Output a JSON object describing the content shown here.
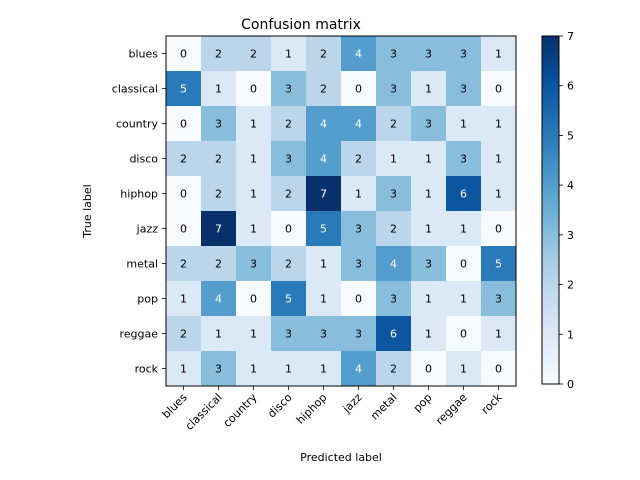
{
  "chart_data": {
    "type": "heatmap",
    "title": "Confusion matrix",
    "xlabel": "Predicted label",
    "ylabel": "True label",
    "x_categories": [
      "blues",
      "classical",
      "country",
      "disco",
      "hiphop",
      "jazz",
      "metal",
      "pop",
      "reggae",
      "rock"
    ],
    "y_categories": [
      "blues",
      "classical",
      "country",
      "disco",
      "hiphop",
      "jazz",
      "metal",
      "pop",
      "reggae",
      "rock"
    ],
    "values": [
      [
        0,
        2,
        2,
        1,
        2,
        4,
        3,
        3,
        3,
        1
      ],
      [
        5,
        1,
        0,
        3,
        2,
        0,
        3,
        1,
        3,
        0
      ],
      [
        0,
        3,
        1,
        2,
        4,
        4,
        2,
        3,
        1,
        1
      ],
      [
        2,
        2,
        1,
        3,
        4,
        2,
        1,
        1,
        3,
        1
      ],
      [
        0,
        2,
        1,
        2,
        7,
        1,
        3,
        1,
        6,
        1
      ],
      [
        0,
        7,
        1,
        0,
        5,
        3,
        2,
        1,
        1,
        0
      ],
      [
        2,
        2,
        3,
        2,
        1,
        3,
        4,
        3,
        0,
        5
      ],
      [
        1,
        4,
        0,
        5,
        1,
        0,
        3,
        1,
        1,
        3
      ],
      [
        2,
        1,
        1,
        3,
        3,
        3,
        6,
        1,
        0,
        1
      ],
      [
        1,
        3,
        1,
        1,
        1,
        4,
        2,
        0,
        1,
        0
      ]
    ],
    "colormap": "Blues",
    "vmin": 0,
    "vmax": 7,
    "colorbar_ticks": [
      0,
      1,
      2,
      3,
      4,
      5,
      6,
      7
    ],
    "grid": false
  }
}
